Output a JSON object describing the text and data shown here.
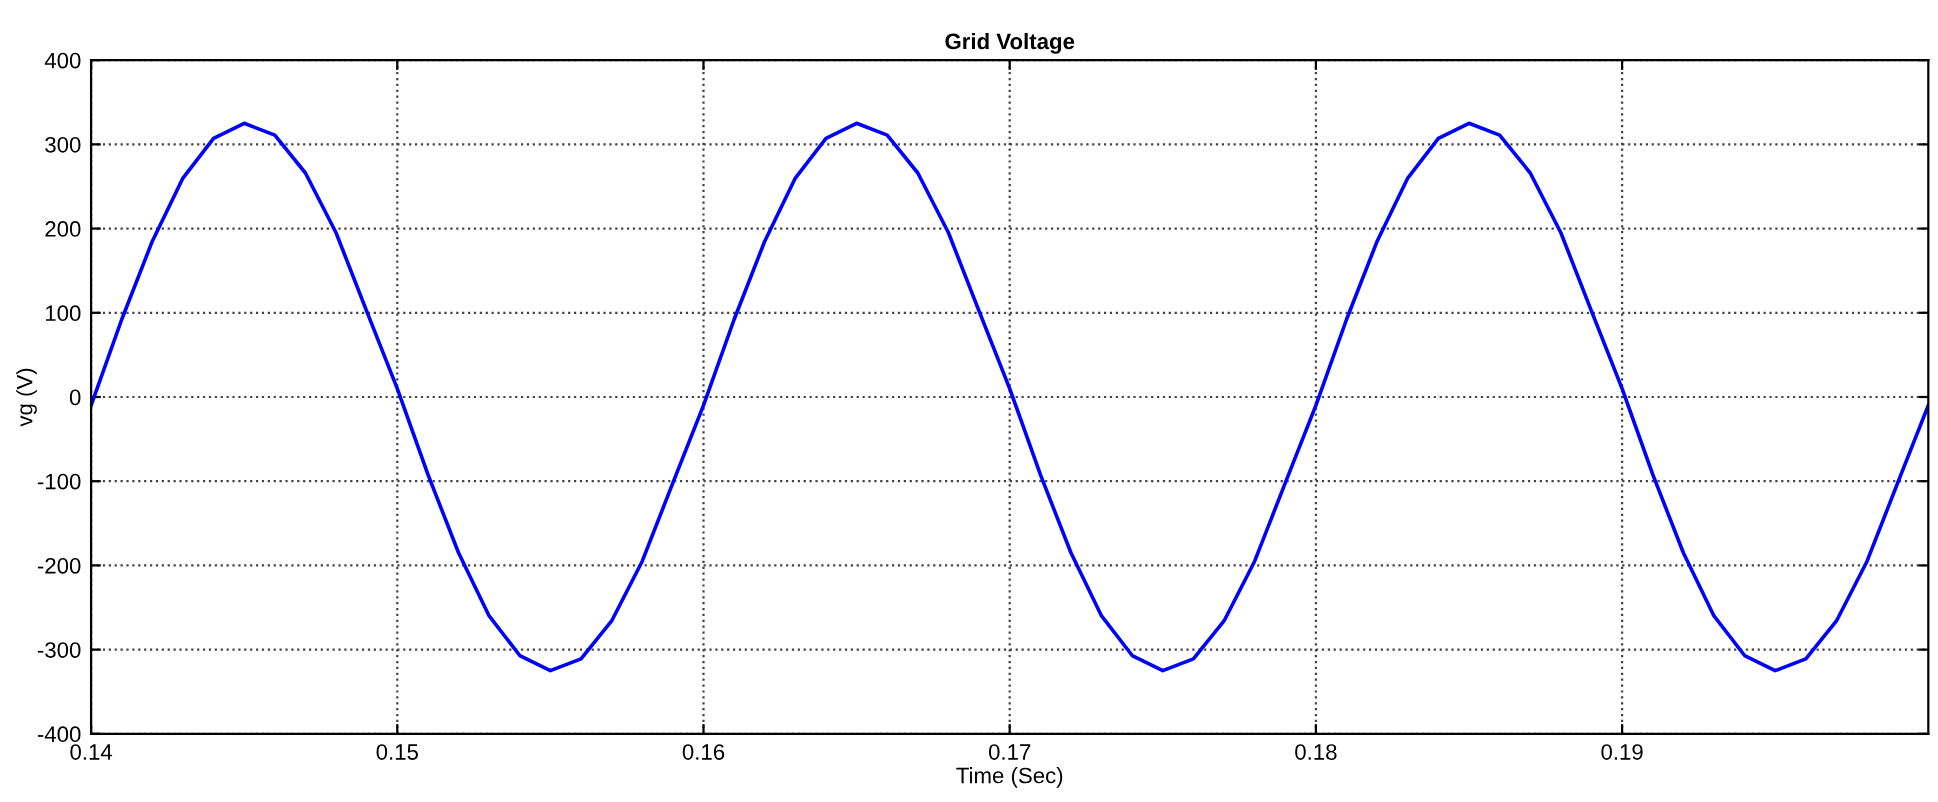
{
  "chart_data": {
    "type": "line",
    "title": "Grid Voltage",
    "xlabel": "Time (Sec)",
    "ylabel": "vg (V)",
    "x": [
      0.14,
      0.141,
      0.142,
      0.143,
      0.144,
      0.145,
      0.146,
      0.147,
      0.148,
      0.149,
      0.15,
      0.151,
      0.152,
      0.153,
      0.154,
      0.155,
      0.156,
      0.157,
      0.158,
      0.159,
      0.16,
      0.161,
      0.162,
      0.163,
      0.164,
      0.165,
      0.166,
      0.167,
      0.168,
      0.169,
      0.17,
      0.171,
      0.172,
      0.173,
      0.174,
      0.175,
      0.176,
      0.177,
      0.178,
      0.179,
      0.18,
      0.181,
      0.182,
      0.183,
      0.184,
      0.185,
      0.186,
      0.187,
      0.188,
      0.189,
      0.19,
      0.191,
      0.192,
      0.193,
      0.194,
      0.195,
      0.196,
      0.197,
      0.198,
      0.199,
      0.2
    ],
    "series": [
      {
        "color": "#0000ff",
        "values": [
          -10,
          92,
          185,
          260,
          307,
          325,
          311,
          266,
          195,
          102,
          10,
          -92,
          -185,
          -260,
          -307,
          -325,
          -311,
          -266,
          -195,
          -102,
          -10,
          92,
          185,
          260,
          307,
          325,
          311,
          266,
          195,
          102,
          10,
          -92,
          -185,
          -260,
          -307,
          -325,
          -311,
          -266,
          -195,
          -102,
          -10,
          92,
          185,
          260,
          307,
          325,
          311,
          266,
          195,
          102,
          10,
          -92,
          -185,
          -260,
          -307,
          -325,
          -311,
          -266,
          -195,
          -102,
          -10
        ]
      }
    ],
    "xlim": [
      0.14,
      0.2
    ],
    "xticks": [
      0.14,
      0.15,
      0.16,
      0.17,
      0.18,
      0.19
    ],
    "ylim": [
      -400,
      400
    ],
    "yticks": [
      -400,
      -300,
      -200,
      -100,
      0,
      100,
      200,
      300,
      400
    ],
    "grid": true,
    "line_style": "solid",
    "marker": "none",
    "legend": false
  }
}
